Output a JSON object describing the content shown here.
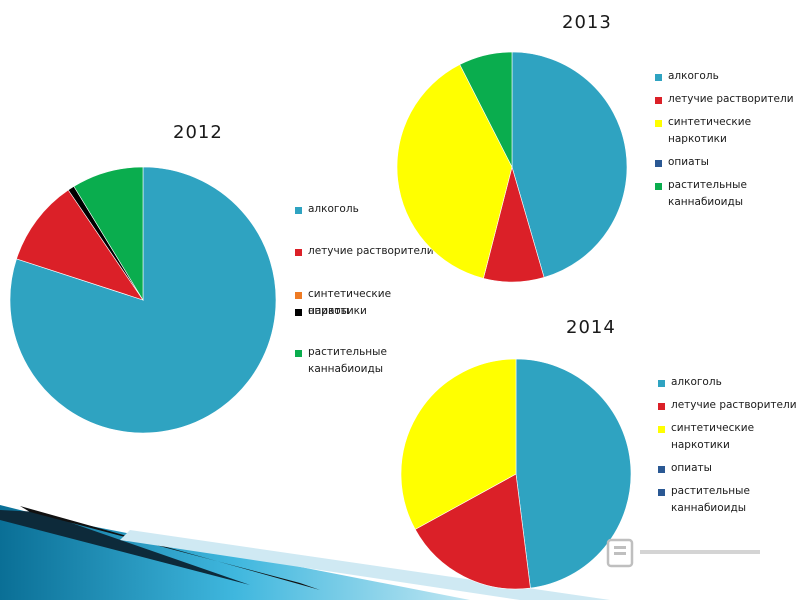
{
  "chart_data": [
    {
      "type": "pie",
      "title": "2012",
      "categories": [
        "алкоголь",
        "летучие растворители",
        "синтетические наркотики",
        "опиаты",
        "растительные каннабиоиды"
      ],
      "values": [
        80,
        10.5,
        0,
        0.8,
        8.7
      ],
      "colors": [
        "#2fa3c1",
        "#db2028",
        "#ee7b24",
        "#000000",
        "#0aad4e"
      ],
      "legend": "right"
    },
    {
      "type": "pie",
      "title": "2013",
      "categories": [
        "алкоголь",
        "летучие растворители",
        "синтетические наркотики",
        "опиаты",
        "растительные каннабиоиды"
      ],
      "values": [
        45.5,
        8.5,
        38.5,
        0,
        7.5
      ],
      "colors": [
        "#2fa3c1",
        "#db2028",
        "#ffff00",
        "#2a5893",
        "#0aad4e"
      ],
      "legend": "right"
    },
    {
      "type": "pie",
      "title": "2014",
      "categories": [
        "алкоголь",
        "летучие растворители",
        "синтетические наркотики",
        "опиаты",
        "растительные каннабиоиды"
      ],
      "values": [
        48,
        19,
        33,
        0,
        0
      ],
      "colors": [
        "#2fa3c1",
        "#db2028",
        "#ffff00",
        "#2a5893",
        "#2a5893"
      ],
      "legend": "right"
    }
  ]
}
